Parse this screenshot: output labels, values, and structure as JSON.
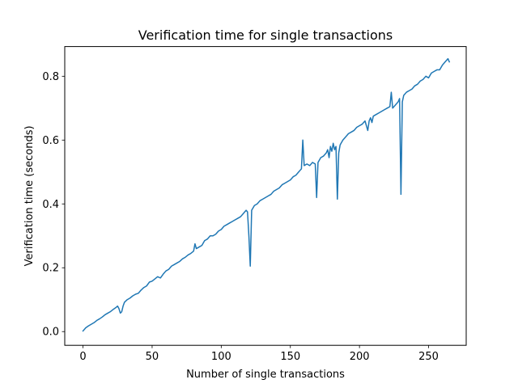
{
  "chart_data": {
    "type": "line",
    "title": "Verification time for single transactions",
    "xlabel": "Number of single transactions",
    "ylabel": "Verification time (seconds)",
    "xlim": [
      -13.2,
      277.2
    ],
    "ylim": [
      -0.043,
      0.893
    ],
    "xticks": [
      0,
      50,
      100,
      150,
      200,
      250
    ],
    "yticks": [
      0.0,
      0.2,
      0.4,
      0.6,
      0.8
    ],
    "xtick_labels": [
      "0",
      "50",
      "100",
      "150",
      "200",
      "250"
    ],
    "ytick_labels": [
      "0.0",
      "0.2",
      "0.4",
      "0.6",
      "0.8"
    ],
    "grid": false,
    "legend": false,
    "series": [
      {
        "color": "#1f77b4",
        "x": [
          0,
          2,
          4,
          6,
          8,
          10,
          12,
          14,
          16,
          18,
          20,
          22,
          24,
          25,
          26,
          27,
          28,
          29,
          30,
          32,
          34,
          36,
          38,
          40,
          42,
          44,
          46,
          48,
          50,
          52,
          54,
          56,
          58,
          60,
          62,
          64,
          66,
          68,
          70,
          72,
          74,
          76,
          78,
          80,
          81,
          82,
          84,
          86,
          88,
          90,
          92,
          94,
          96,
          98,
          100,
          102,
          104,
          106,
          108,
          110,
          112,
          114,
          116,
          118,
          119,
          120,
          121,
          122,
          124,
          126,
          128,
          130,
          132,
          134,
          136,
          138,
          140,
          142,
          144,
          146,
          148,
          150,
          152,
          154,
          156,
          157,
          158,
          159,
          160,
          162,
          164,
          166,
          168,
          169,
          170,
          172,
          174,
          176,
          177,
          178,
          179,
          180,
          181,
          182,
          183,
          184,
          185,
          186,
          188,
          190,
          192,
          194,
          196,
          198,
          200,
          202,
          204,
          206,
          207,
          208,
          209,
          210,
          212,
          214,
          216,
          218,
          220,
          222,
          223,
          224,
          226,
          228,
          229,
          230,
          231,
          232,
          234,
          236,
          238,
          240,
          242,
          244,
          246,
          248,
          250,
          252,
          254,
          256,
          258,
          260,
          262,
          264,
          265
        ],
        "y": [
          0.002,
          0.012,
          0.018,
          0.023,
          0.028,
          0.035,
          0.04,
          0.046,
          0.053,
          0.058,
          0.063,
          0.07,
          0.076,
          0.08,
          0.072,
          0.058,
          0.062,
          0.08,
          0.092,
          0.1,
          0.105,
          0.112,
          0.117,
          0.12,
          0.13,
          0.138,
          0.143,
          0.155,
          0.158,
          0.165,
          0.172,
          0.168,
          0.18,
          0.19,
          0.195,
          0.205,
          0.21,
          0.215,
          0.22,
          0.228,
          0.233,
          0.24,
          0.245,
          0.252,
          0.275,
          0.26,
          0.265,
          0.27,
          0.285,
          0.29,
          0.3,
          0.3,
          0.305,
          0.315,
          0.32,
          0.33,
          0.335,
          0.34,
          0.345,
          0.35,
          0.355,
          0.36,
          0.37,
          0.38,
          0.375,
          0.3,
          0.205,
          0.38,
          0.395,
          0.4,
          0.41,
          0.415,
          0.42,
          0.425,
          0.43,
          0.44,
          0.445,
          0.45,
          0.46,
          0.465,
          0.47,
          0.475,
          0.485,
          0.49,
          0.5,
          0.505,
          0.51,
          0.6,
          0.52,
          0.525,
          0.52,
          0.53,
          0.525,
          0.42,
          0.53,
          0.545,
          0.55,
          0.56,
          0.57,
          0.545,
          0.58,
          0.565,
          0.59,
          0.57,
          0.58,
          0.415,
          0.56,
          0.585,
          0.6,
          0.61,
          0.62,
          0.625,
          0.63,
          0.64,
          0.645,
          0.65,
          0.66,
          0.63,
          0.66,
          0.67,
          0.655,
          0.675,
          0.68,
          0.685,
          0.69,
          0.695,
          0.7,
          0.705,
          0.75,
          0.7,
          0.71,
          0.72,
          0.73,
          0.43,
          0.72,
          0.74,
          0.75,
          0.755,
          0.76,
          0.77,
          0.775,
          0.785,
          0.79,
          0.8,
          0.795,
          0.81,
          0.815,
          0.82,
          0.82,
          0.835,
          0.845,
          0.855,
          0.845
        ]
      }
    ]
  }
}
